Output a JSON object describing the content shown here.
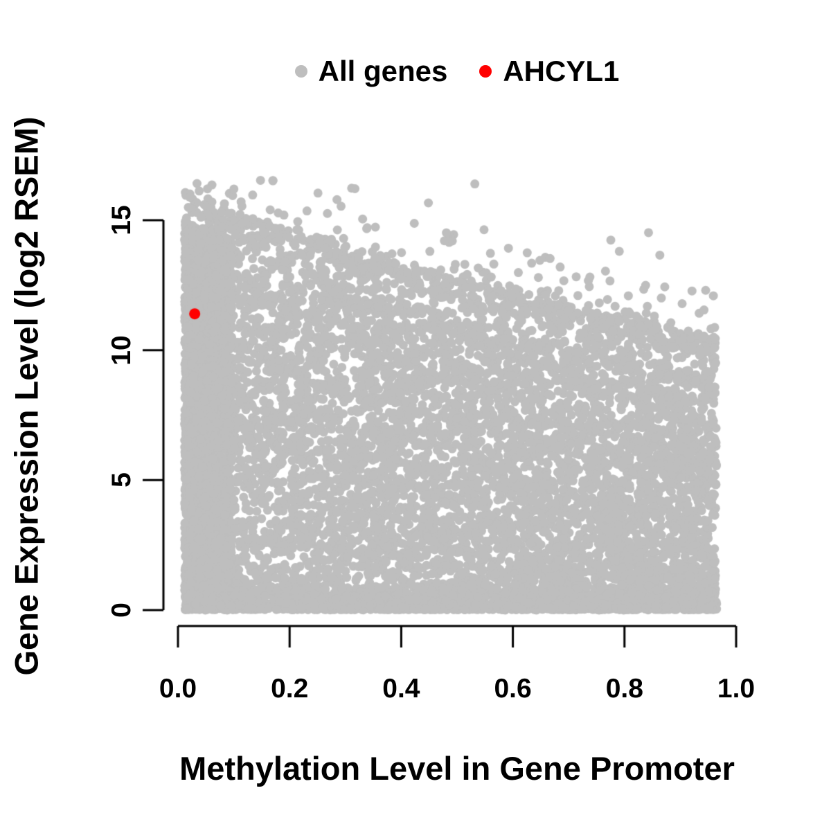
{
  "figure": {
    "background": "#ffffff",
    "text_color": "#000000",
    "axis_color": "#000000"
  },
  "chart_data": {
    "type": "scatter",
    "title": "",
    "xlabel": "Methylation Level in Gene Promoter",
    "ylabel": "Gene Expression Level (log2 RSEM)",
    "xlim": [
      -0.03,
      1.03
    ],
    "ylim": [
      -0.6,
      16.8
    ],
    "x_tick_values": [
      0,
      0.2,
      0.4,
      0.6,
      0.8,
      1.0
    ],
    "x_tick_labels": [
      "0.0",
      "0.2",
      "0.4",
      "0.6",
      "0.8",
      "1.0"
    ],
    "y_tick_values": [
      0,
      5,
      10,
      15
    ],
    "y_tick_labels": [
      "0",
      "5",
      "10",
      "15"
    ],
    "grid": false,
    "legend_position": "top-center",
    "legend": [
      {
        "label": "All genes",
        "color": "#bebebe"
      },
      {
        "label": "AHCYL1",
        "color": "#ff0000"
      }
    ],
    "series": [
      {
        "name": "All genes",
        "color": "#bebebe",
        "marker": "filled-circle",
        "marker_radius_px": 6.5,
        "cloud": {
          "description": "Dense cloud of ~11000 genes; methylation 0.01-0.97, expression 0-16.6; upper envelope of dense mass declines from ~15.2 at low methylation to ~9.7 at high methylation, with a sparse fringe of points above it, a very dense column at methylation < 0.1 reaching expression ~15, and a dense band of near-zero expression along the bottom.",
          "n": 11000,
          "seed": 42,
          "x_range": [
            0.012,
            0.965
          ],
          "y_max": 16.6,
          "dense_top_envelope": [
            [
              0,
              15.2
            ],
            [
              0.1,
              14.4
            ],
            [
              0.25,
              13.5
            ],
            [
              0.4,
              12.4
            ],
            [
              0.55,
              11.6
            ],
            [
              0.7,
              10.8
            ],
            [
              0.85,
              10.1
            ],
            [
              0.96,
              9.7
            ]
          ],
          "components": {
            "left_column": {
              "weight": 0.22,
              "x_width": 0.085,
              "x_pow": 1.15,
              "y_pow": 1.02,
              "top_offset": -0.15
            },
            "main": {
              "weight": 0.594,
              "y_pow": 1.05,
              "top_offset": -0.55
            },
            "bottom_band": {
              "weight": 0.1,
              "y_base": 0.02,
              "y_spread": 0.85,
              "y_pow": 2.2
            },
            "upper_band": {
              "weight": 0.06,
              "offset": -0.7,
              "height": 1.6,
              "y_pow": 0.7
            },
            "fringe": {
              "weight": 0.02,
              "offset": 0.15,
              "exp_scale": 0.9,
              "max_above": 2.4
            },
            "outliers": {
              "weight": 0.006,
              "offset": 0.3,
              "exp_scale": 1.1
            }
          }
        }
      },
      {
        "name": "AHCYL1",
        "color": "#ff0000",
        "marker": "filled-circle",
        "marker_radius_px": 8,
        "points": [
          [
            0.03,
            11.4
          ]
        ]
      }
    ]
  }
}
